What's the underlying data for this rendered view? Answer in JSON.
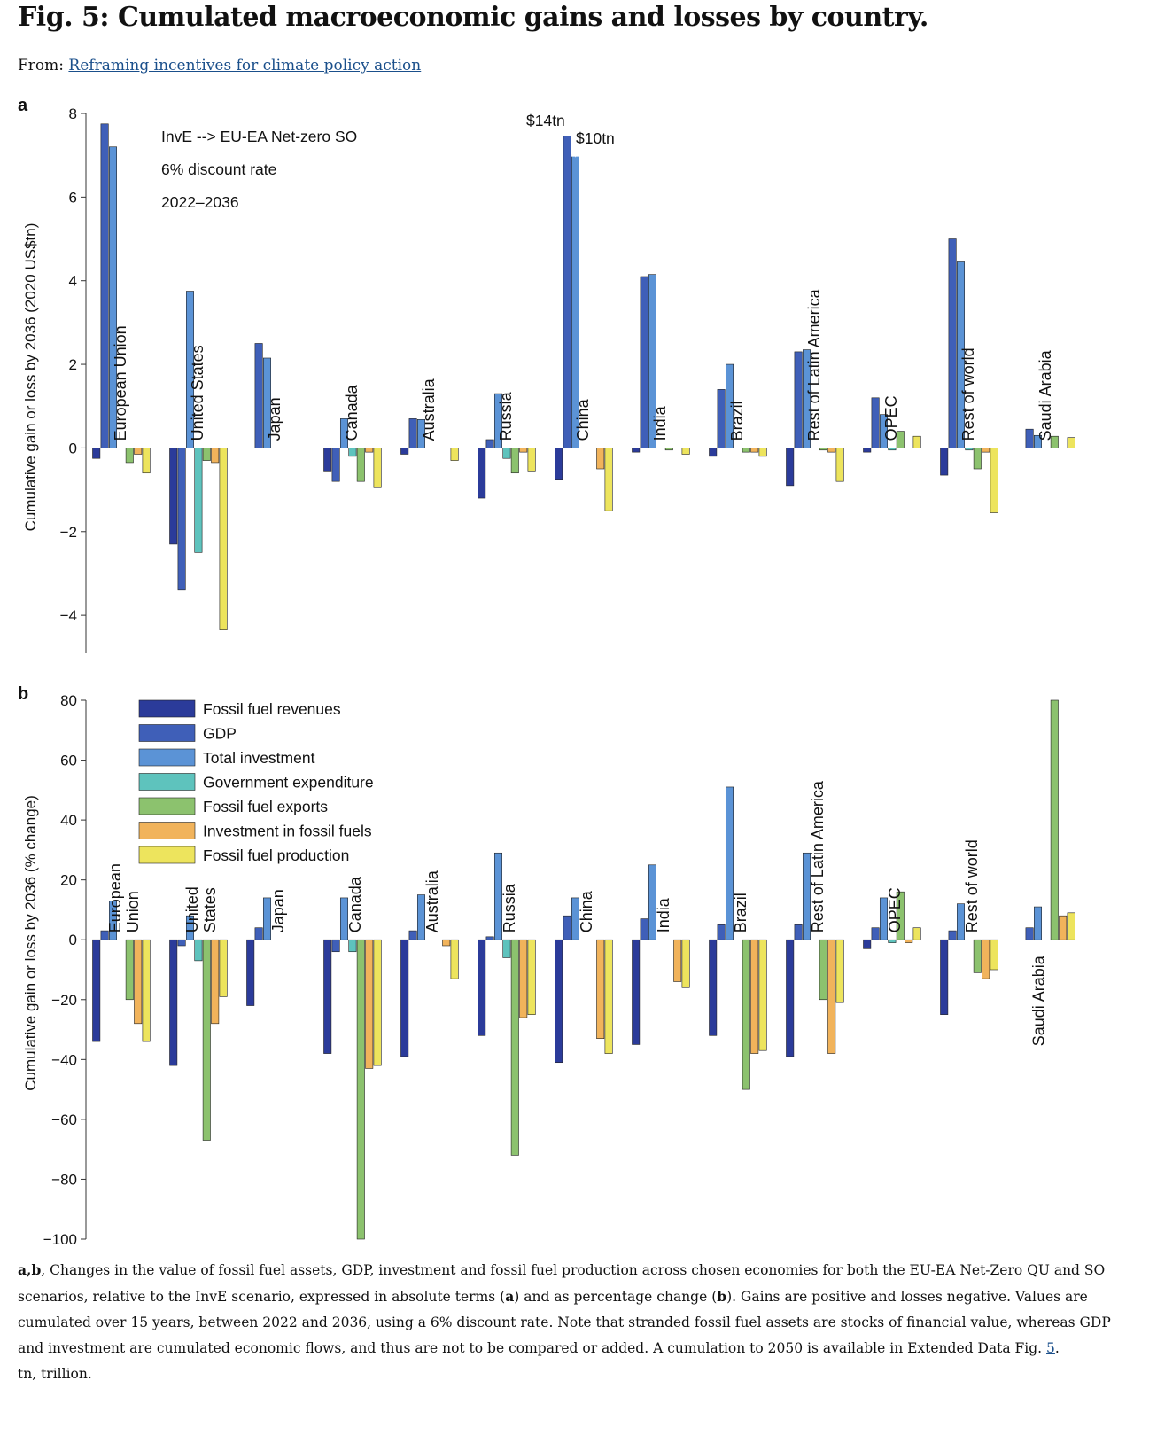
{
  "page": {
    "title": "Fig. 5: Cumulated macroeconomic gains and losses by country.",
    "from_label": "From:",
    "from_link": "Reframing incentives for climate policy action",
    "caption_lead": "a,b",
    "caption_p1": ", Changes in the value of fossil fuel assets, GDP, investment and fossil fuel production across chosen economies for both the EU-EA Net-Zero QU and SO scenarios, relative to the InvE scenario, expressed in absolute terms (",
    "caption_a": "a",
    "caption_p2": ") and as percentage change (",
    "caption_b": "b",
    "caption_p3": "). Gains are positive and losses negative. Values are cumulated over 15 years, between 2022 and 2036, using a 6% discount rate. Note that stranded fossil fuel assets are stocks of financial value, whereas GDP and investment are cumulated economic flows, and thus are not to be compared or added. A cumulation to 2050 is available in Extended Data Fig. ",
    "caption_ref": "5",
    "caption_p4": ".",
    "caption_tn": "tn, trillion."
  },
  "colors": {
    "Fossil fuel revenues": "#2b3b9a",
    "GDP": "#3f5fb8",
    "Total investment": "#5b93d6",
    "Government expenditure": "#5ec3bd",
    "Fossil fuel exports": "#8cc26e",
    "Investment in fossil fuels": "#f1b35b",
    "Fossil fuel production": "#ede45d"
  },
  "chart_data": [
    {
      "type": "bar",
      "panel": "a",
      "ylabel": "Cumulative gain or loss by 2036 (2020 US$tn)",
      "ylim": [
        -4.4,
        8
      ],
      "yticks": [
        -4,
        -2,
        0,
        2,
        4,
        6,
        8
      ],
      "ytick_labels": [
        "−4",
        "−2",
        "0",
        "2",
        "4",
        "6",
        "8"
      ],
      "annotations": [
        "InvE --> EU-EA Net-zero SO",
        "6% discount rate",
        "2022–2036"
      ],
      "break_labels": [
        {
          "text": "$14tn",
          "category": "China",
          "series": "GDP",
          "actual": 14
        },
        {
          "text": "$10tn",
          "category": "China",
          "series": "Total investment",
          "actual": 10
        }
      ],
      "series_names": [
        "Fossil fuel revenues",
        "GDP",
        "Total investment",
        "Government expenditure",
        "Fossil fuel exports",
        "Investment in fossil fuels",
        "Fossil fuel production"
      ],
      "groups": [
        {
          "name": "European Union",
          "values": [
            -0.25,
            7.75,
            7.2,
            0,
            -0.35,
            -0.15,
            -0.6
          ]
        },
        {
          "name": "United States",
          "values": [
            -2.3,
            -3.4,
            3.75,
            -2.5,
            -0.3,
            -0.35,
            -4.35
          ]
        },
        {
          "name": "Japan",
          "values": [
            0,
            2.5,
            2.15,
            0,
            0,
            0,
            0
          ]
        },
        {
          "name": "Canada",
          "values": [
            -0.55,
            -0.8,
            0.7,
            -0.2,
            -0.8,
            -0.1,
            -0.95
          ]
        },
        {
          "name": "Australia",
          "values": [
            -0.15,
            0.7,
            0.68,
            0,
            0,
            0,
            -0.3
          ]
        },
        {
          "name": "Russia",
          "values": [
            -1.2,
            0.2,
            1.3,
            -0.25,
            -0.6,
            -0.1,
            -0.55
          ]
        },
        {
          "name": "China",
          "values": [
            -0.75,
            7.5,
            7.0,
            0,
            0,
            -0.5,
            -1.5
          ]
        },
        {
          "name": "India",
          "values": [
            -0.1,
            4.1,
            4.15,
            0,
            -0.05,
            0,
            -0.15
          ]
        },
        {
          "name": "Brazil",
          "values": [
            -0.2,
            1.4,
            2.0,
            0,
            -0.1,
            -0.1,
            -0.2
          ]
        },
        {
          "name": "Rest of Latin America",
          "values": [
            -0.9,
            2.3,
            2.35,
            0,
            -0.05,
            -0.1,
            -0.8
          ]
        },
        {
          "name": "OPEC",
          "values": [
            -0.1,
            1.2,
            0.8,
            -0.05,
            0.4,
            0,
            0.28
          ]
        },
        {
          "name": "Rest of world",
          "values": [
            -0.65,
            5.0,
            4.45,
            -0.05,
            -0.5,
            -0.1,
            -1.55
          ]
        },
        {
          "name": "Saudi Arabia",
          "values": [
            0,
            0.45,
            0.3,
            0,
            0.28,
            0,
            0.25
          ]
        }
      ]
    },
    {
      "type": "bar",
      "panel": "b",
      "ylabel": "Cumulative gain or loss by 2036 (% change)",
      "ylim": [
        -100,
        80
      ],
      "yticks": [
        -100,
        -80,
        -60,
        -40,
        -20,
        0,
        20,
        40,
        60,
        80
      ],
      "ytick_labels": [
        "−100",
        "−80",
        "−60",
        "−40",
        "−20",
        "0",
        "20",
        "40",
        "60",
        "80"
      ],
      "legend": {
        "position": "top-left",
        "entries": [
          "Fossil fuel revenues",
          "GDP",
          "Total investment",
          "Government expenditure",
          "Fossil fuel exports",
          "Investment in fossil fuels",
          "Fossil fuel production"
        ]
      },
      "series_names": [
        "Fossil fuel revenues",
        "GDP",
        "Total investment",
        "Government expenditure",
        "Fossil fuel exports",
        "Investment in fossil fuels",
        "Fossil fuel production"
      ],
      "groups": [
        {
          "name": "European Union",
          "label_lines": [
            "European",
            "Union"
          ],
          "values": [
            -34,
            3,
            13,
            0,
            -20,
            -28,
            -34
          ]
        },
        {
          "name": "United States",
          "label_lines": [
            "United",
            "States"
          ],
          "values": [
            -42,
            -2,
            8,
            -7,
            -67,
            -28,
            -19
          ]
        },
        {
          "name": "Japan",
          "label_lines": [
            "Japan"
          ],
          "values": [
            -22,
            4,
            14,
            0,
            0,
            0,
            0
          ]
        },
        {
          "name": "Canada",
          "label_lines": [
            "Canada"
          ],
          "values": [
            -38,
            -4,
            14,
            -4,
            -100,
            -43,
            -42
          ]
        },
        {
          "name": "Australia",
          "label_lines": [
            "Australia"
          ],
          "values": [
            -39,
            3,
            15,
            0,
            0,
            -2,
            -13
          ]
        },
        {
          "name": "Russia",
          "label_lines": [
            "Russia"
          ],
          "values": [
            -32,
            1,
            29,
            -6,
            -72,
            -26,
            -25
          ]
        },
        {
          "name": "China",
          "label_lines": [
            "China"
          ],
          "values": [
            -41,
            8,
            14,
            0,
            0,
            -33,
            -38
          ]
        },
        {
          "name": "India",
          "label_lines": [
            "India"
          ],
          "values": [
            -35,
            7,
            25,
            0,
            0,
            -14,
            -16
          ]
        },
        {
          "name": "Brazil",
          "label_lines": [
            "Brazil"
          ],
          "values": [
            -32,
            5,
            51,
            0,
            -50,
            -38,
            -37
          ]
        },
        {
          "name": "Rest of Latin America",
          "label_lines": [
            "Rest of Latin America"
          ],
          "values": [
            -39,
            5,
            29,
            0,
            -20,
            -38,
            -21
          ]
        },
        {
          "name": "OPEC",
          "label_lines": [
            "OPEC"
          ],
          "values": [
            -3,
            4,
            14,
            -1,
            16,
            -1,
            4
          ]
        },
        {
          "name": "Rest of world",
          "label_lines": [
            "Rest of world"
          ],
          "values": [
            -25,
            3,
            12,
            0,
            -11,
            -13,
            -10
          ]
        },
        {
          "name": "Saudi Arabia",
          "label_lines": [
            "Saudi Arabia"
          ],
          "values": [
            0,
            4,
            11,
            0,
            80,
            8,
            9
          ]
        }
      ]
    }
  ]
}
